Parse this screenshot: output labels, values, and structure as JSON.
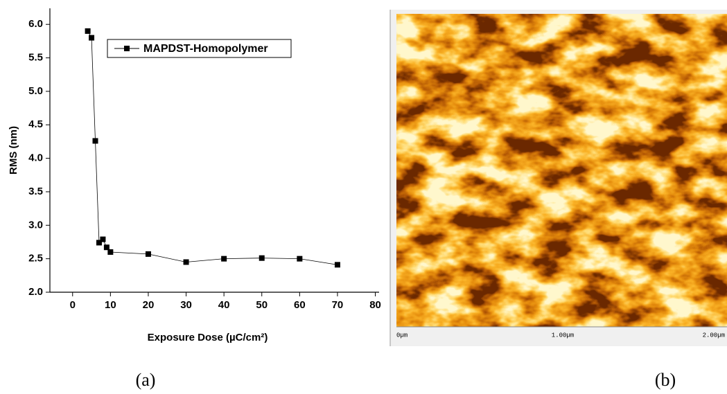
{
  "chart_data": {
    "type": "line",
    "x_label": "Exposure Dose (µC/cm²)",
    "y_label": "RMS (nm)",
    "x": [
      4,
      5,
      6,
      7,
      8,
      9,
      10,
      20,
      30,
      40,
      50,
      60,
      70
    ],
    "series": [
      {
        "name": "MAPDST-Homopolymer",
        "color": "#000000",
        "values": [
          5.9,
          5.8,
          4.26,
          2.74,
          2.79,
          2.67,
          2.6,
          2.57,
          2.45,
          2.5,
          2.51,
          2.5,
          2.41
        ]
      }
    ],
    "xlim": [
      -6,
      81
    ],
    "xticks": [
      0,
      10,
      20,
      30,
      40,
      50,
      60,
      70,
      80
    ],
    "ylim": [
      2.0,
      6.24
    ],
    "yticks": [
      {
        "value": 2.0,
        "label": "2.0"
      },
      {
        "value": 2.5,
        "label": "2.5"
      },
      {
        "value": 3.0,
        "label": "3.0"
      },
      {
        "value": 3.5,
        "label": "3.5"
      },
      {
        "value": 4.0,
        "label": "4.0"
      },
      {
        "value": 4.5,
        "label": "4.5"
      },
      {
        "value": 5.0,
        "label": "5.0"
      },
      {
        "value": 5.5,
        "label": "5.5"
      },
      {
        "value": 6.0,
        "label": "6.0"
      }
    ],
    "legend": "upper left",
    "grid": false
  },
  "image_panel": {
    "scale_labels": [
      "0µm",
      "1.00µm",
      "2.00µm"
    ]
  },
  "panel_labels": [
    "(a)",
    "(b)"
  ]
}
